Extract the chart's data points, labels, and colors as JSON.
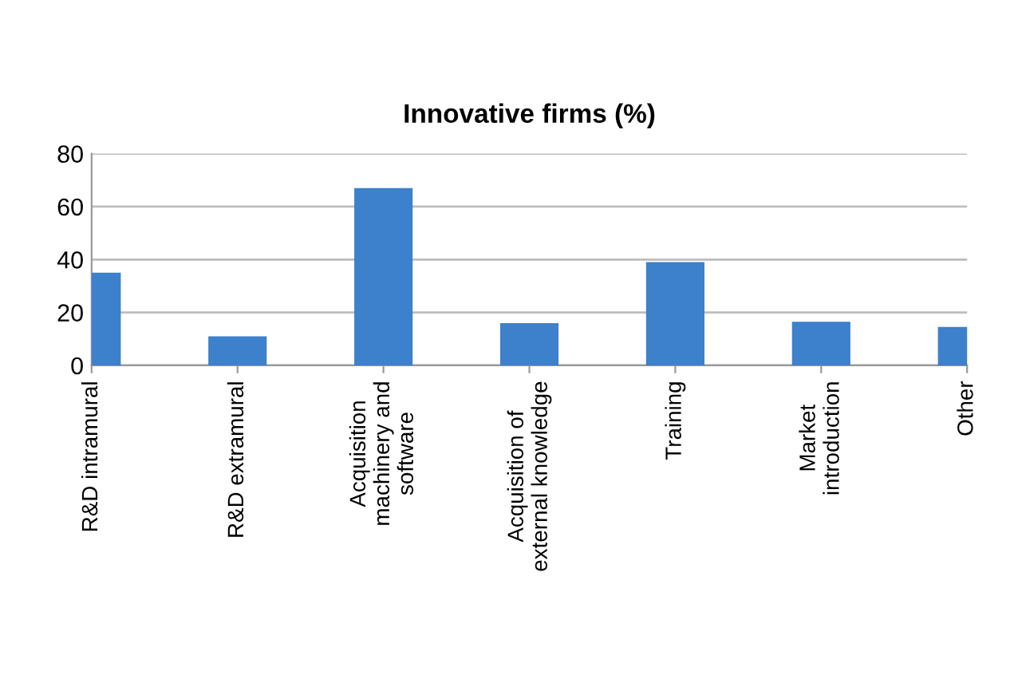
{
  "chart_data": {
    "type": "bar",
    "title": "Innovative firms (%)",
    "categories": [
      "R&D intramural",
      "R&D extramural",
      "Acquisition\nmachinery and\nsoftware",
      "Acquisition of\nexternal knowledge",
      "Training",
      "Market\nintroduction",
      "Other"
    ],
    "values": [
      35,
      11,
      67,
      16,
      39,
      16.5,
      14.5
    ],
    "color": "#3d80cc",
    "ylim": [
      0,
      80
    ],
    "yticks": [
      0,
      20,
      40,
      60,
      80
    ],
    "grid": "y"
  }
}
